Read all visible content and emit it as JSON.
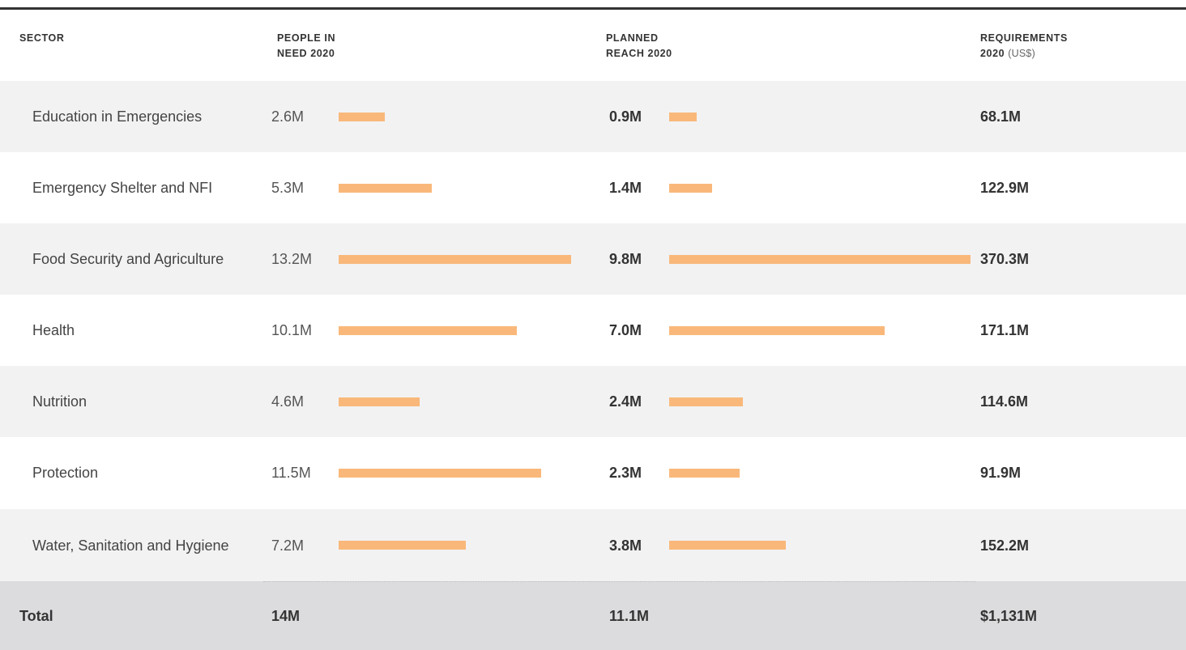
{
  "table": {
    "headers": {
      "sector": "SECTOR",
      "pin": "PEOPLE IN NEED 2020",
      "reach": "PLANNED REACH 2020",
      "requirements": "REQUIREMENTS 2020",
      "requirements_unit": "(US$)"
    },
    "rows": [
      {
        "sector": "Education in Emergencies",
        "pin": {
          "value": 2.6,
          "label": "2.6M"
        },
        "reach": {
          "value": 0.9,
          "label": "0.9M"
        },
        "requirements": "68.1M"
      },
      {
        "sector": "Emergency Shelter and NFI",
        "pin": {
          "value": 5.3,
          "label": "5.3M"
        },
        "reach": {
          "value": 1.4,
          "label": "1.4M"
        },
        "requirements": "122.9M"
      },
      {
        "sector": "Food Security and Agriculture",
        "pin": {
          "value": 13.2,
          "label": "13.2M"
        },
        "reach": {
          "value": 9.8,
          "label": "9.8M"
        },
        "requirements": "370.3M"
      },
      {
        "sector": "Health",
        "pin": {
          "value": 10.1,
          "label": "10.1M"
        },
        "reach": {
          "value": 7.0,
          "label": "7.0M"
        },
        "requirements": "171.1M"
      },
      {
        "sector": "Nutrition",
        "pin": {
          "value": 4.6,
          "label": "4.6M"
        },
        "reach": {
          "value": 2.4,
          "label": "2.4M"
        },
        "requirements": "114.6M"
      },
      {
        "sector": "Protection",
        "pin": {
          "value": 11.5,
          "label": "11.5M"
        },
        "reach": {
          "value": 2.3,
          "label": "2.3M"
        },
        "requirements": "91.9M"
      },
      {
        "sector": "Water, Sanitation and Hygiene",
        "pin": {
          "value": 7.2,
          "label": "7.2M"
        },
        "reach": {
          "value": 3.8,
          "label": "3.8M"
        },
        "requirements": "152.2M"
      }
    ],
    "total": {
      "label": "Total",
      "pin": "14M",
      "reach": "11.1M",
      "requirements": "$1,131M"
    },
    "bar_color": "#f9b87a"
  }
}
